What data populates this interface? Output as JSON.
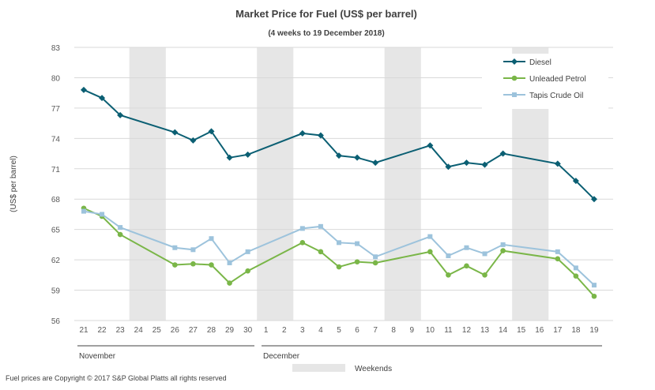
{
  "chart_data": {
    "type": "line",
    "title": "Market Price for Fuel (US$ per barrel)",
    "subtitle": "(4 weeks to 19 December 2018)",
    "ylabel": "(US$ per barrel)",
    "xlabel": "",
    "ylim": [
      56,
      83
    ],
    "yticks": [
      56,
      59,
      62,
      65,
      68,
      71,
      74,
      77,
      80,
      83
    ],
    "grid": true,
    "legend_position": "top-right",
    "categories": [
      "21",
      "22",
      "23",
      "24",
      "25",
      "26",
      "27",
      "28",
      "29",
      "30",
      "1",
      "2",
      "3",
      "4",
      "5",
      "6",
      "7",
      "8",
      "9",
      "10",
      "11",
      "12",
      "13",
      "14",
      "15",
      "16",
      "17",
      "18",
      "19"
    ],
    "months": [
      {
        "label": "November",
        "start": 0,
        "end": 9
      },
      {
        "label": "December",
        "start": 10,
        "end": 28
      }
    ],
    "weekend_spans": [
      [
        3,
        4
      ],
      [
        10,
        11
      ],
      [
        17,
        18
      ],
      [
        24,
        25
      ]
    ],
    "weekend_label": "Weekends",
    "series": [
      {
        "name": "Diesel",
        "color": "#0b5f73",
        "marker": "diamond",
        "values": [
          78.8,
          78.0,
          76.3,
          null,
          null,
          74.6,
          73.8,
          74.7,
          72.1,
          72.4,
          null,
          null,
          74.5,
          74.3,
          72.3,
          72.1,
          71.6,
          null,
          null,
          73.3,
          71.2,
          71.6,
          71.4,
          72.5,
          null,
          null,
          71.5,
          69.8,
          68.0
        ]
      },
      {
        "name": "Unleaded Petrol",
        "color": "#7ab648",
        "marker": "circle",
        "values": [
          67.1,
          66.3,
          64.5,
          null,
          null,
          61.5,
          61.6,
          61.5,
          59.7,
          60.9,
          null,
          null,
          63.7,
          62.8,
          61.3,
          61.8,
          61.7,
          null,
          null,
          62.8,
          60.5,
          61.4,
          60.5,
          62.9,
          null,
          null,
          62.1,
          60.4,
          58.4
        ]
      },
      {
        "name": "Tapis Crude Oil",
        "color": "#9dc3dc",
        "marker": "square",
        "values": [
          66.8,
          66.5,
          65.2,
          null,
          null,
          63.2,
          63.0,
          64.1,
          61.7,
          62.8,
          null,
          null,
          65.1,
          65.3,
          63.7,
          63.6,
          62.3,
          null,
          null,
          64.3,
          62.4,
          63.2,
          62.6,
          63.5,
          null,
          null,
          62.8,
          61.2,
          59.5
        ]
      }
    ]
  },
  "footer": "Fuel prices are Copyright © 2017 S&P Global Platts all rights reserved"
}
